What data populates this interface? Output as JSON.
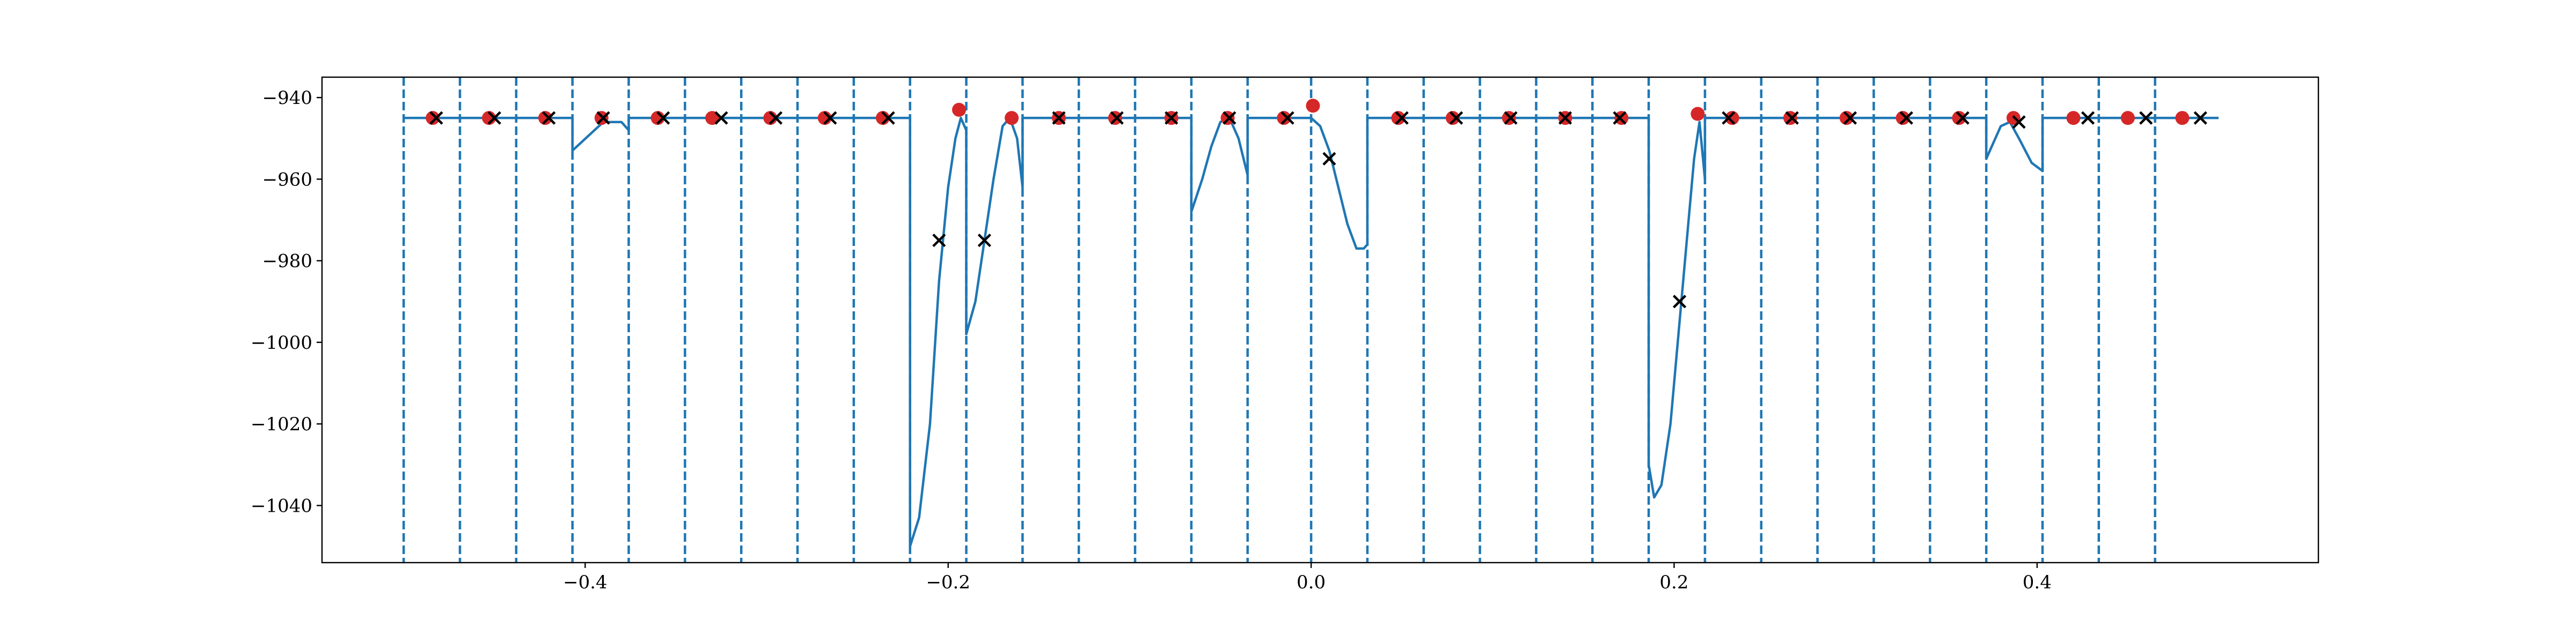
{
  "chart_data": {
    "type": "line",
    "title": "",
    "xlabel": "",
    "ylabel": "",
    "xlim": [
      -0.545,
      0.555
    ],
    "ylim": [
      -1054,
      -935
    ],
    "grid": false,
    "legend": "none",
    "x_ticks": [
      {
        "value": -0.4,
        "label": "−0.4"
      },
      {
        "value": -0.2,
        "label": "−0.2"
      },
      {
        "value": 0.0,
        "label": "0.0"
      },
      {
        "value": 0.2,
        "label": "0.2"
      },
      {
        "value": 0.4,
        "label": "0.4"
      }
    ],
    "y_ticks": [
      {
        "value": -940,
        "label": "−940"
      },
      {
        "value": -960,
        "label": "−960"
      },
      {
        "value": -980,
        "label": "−980"
      },
      {
        "value": -1000,
        "label": "−1000"
      },
      {
        "value": -1020,
        "label": "−1020"
      },
      {
        "value": -1040,
        "label": "−1040"
      }
    ],
    "colors": {
      "line": "#1f77b4",
      "boundary": "#1f77b4",
      "red_marker": "#d62728",
      "x_marker": "#000000",
      "axis": "#000000"
    },
    "boundaries": [
      -0.5,
      -0.469,
      -0.438,
      -0.407,
      -0.376,
      -0.345,
      -0.314,
      -0.283,
      -0.252,
      -0.221,
      -0.19,
      -0.159,
      -0.128,
      -0.097,
      -0.066,
      -0.035,
      0.0,
      0.031,
      0.062,
      0.093,
      0.124,
      0.155,
      0.186,
      0.217,
      0.248,
      0.279,
      0.31,
      0.341,
      0.372,
      0.403,
      0.434,
      0.465
    ],
    "series": [
      {
        "values": [
          [
            -0.5,
            -945
          ],
          [
            -0.407,
            -945
          ],
          [
            -0.407,
            -953
          ],
          [
            -0.39,
            -946
          ],
          [
            -0.38,
            -946
          ],
          [
            -0.376,
            -948
          ],
          [
            -0.376,
            -945
          ],
          [
            -0.221,
            -945
          ],
          [
            -0.221,
            -1050
          ],
          [
            -0.216,
            -1043
          ],
          [
            -0.21,
            -1020
          ],
          [
            -0.205,
            -985
          ],
          [
            -0.2,
            -962
          ],
          [
            -0.196,
            -950
          ],
          [
            -0.193,
            -945
          ],
          [
            -0.19,
            -948
          ],
          [
            -0.19,
            -998
          ],
          [
            -0.185,
            -990
          ],
          [
            -0.18,
            -975
          ],
          [
            -0.175,
            -960
          ],
          [
            -0.17,
            -947
          ],
          [
            -0.166,
            -945
          ],
          [
            -0.162,
            -950
          ],
          [
            -0.159,
            -962
          ],
          [
            -0.159,
            -945
          ],
          [
            -0.066,
            -945
          ],
          [
            -0.066,
            -968
          ],
          [
            -0.06,
            -960
          ],
          [
            -0.055,
            -952
          ],
          [
            -0.05,
            -946
          ],
          [
            -0.045,
            -945
          ],
          [
            -0.04,
            -950
          ],
          [
            -0.035,
            -959
          ],
          [
            -0.035,
            -945
          ],
          [
            0.0,
            -945
          ],
          [
            0.005,
            -947
          ],
          [
            0.01,
            -953
          ],
          [
            0.015,
            -962
          ],
          [
            0.02,
            -971
          ],
          [
            0.025,
            -977
          ],
          [
            0.029,
            -977
          ],
          [
            0.031,
            -976
          ],
          [
            0.031,
            -975
          ],
          [
            0.031,
            -945
          ],
          [
            0.186,
            -945
          ],
          [
            0.186,
            -1030
          ],
          [
            0.189,
            -1038
          ],
          [
            0.193,
            -1035
          ],
          [
            0.198,
            -1020
          ],
          [
            0.203,
            -995
          ],
          [
            0.207,
            -975
          ],
          [
            0.211,
            -955
          ],
          [
            0.214,
            -946
          ],
          [
            0.217,
            -960
          ],
          [
            0.217,
            -945
          ],
          [
            0.372,
            -945
          ],
          [
            0.372,
            -955
          ],
          [
            0.38,
            -947
          ],
          [
            0.385,
            -946
          ],
          [
            0.39,
            -950
          ],
          [
            0.397,
            -956
          ],
          [
            0.403,
            -958
          ],
          [
            0.403,
            -945
          ],
          [
            0.5,
            -945
          ]
        ]
      }
    ],
    "red_points": [
      [
        -0.484,
        -945
      ],
      [
        -0.453,
        -945
      ],
      [
        -0.422,
        -945
      ],
      [
        -0.391,
        -945
      ],
      [
        -0.36,
        -945
      ],
      [
        -0.33,
        -945
      ],
      [
        -0.298,
        -945
      ],
      [
        -0.268,
        -945
      ],
      [
        -0.236,
        -945
      ],
      [
        -0.194,
        -943
      ],
      [
        -0.165,
        -945
      ],
      [
        -0.139,
        -945
      ],
      [
        -0.108,
        -945
      ],
      [
        -0.077,
        -945
      ],
      [
        -0.046,
        -945
      ],
      [
        -0.015,
        -945
      ],
      [
        0.001,
        -942
      ],
      [
        0.048,
        -945
      ],
      [
        0.078,
        -945
      ],
      [
        0.109,
        -945
      ],
      [
        0.14,
        -945
      ],
      [
        0.171,
        -945
      ],
      [
        0.213,
        -944
      ],
      [
        0.232,
        -945
      ],
      [
        0.264,
        -945
      ],
      [
        0.295,
        -945
      ],
      [
        0.326,
        -945
      ],
      [
        0.357,
        -945
      ],
      [
        0.387,
        -945
      ],
      [
        0.42,
        -945
      ],
      [
        0.45,
        -945
      ],
      [
        0.48,
        -945
      ]
    ],
    "x_points": [
      [
        -0.482,
        -945
      ],
      [
        -0.45,
        -945
      ],
      [
        -0.42,
        -945
      ],
      [
        -0.39,
        -945
      ],
      [
        -0.357,
        -945
      ],
      [
        -0.325,
        -945
      ],
      [
        -0.295,
        -945
      ],
      [
        -0.265,
        -945
      ],
      [
        -0.233,
        -945
      ],
      [
        -0.205,
        -975
      ],
      [
        -0.18,
        -975
      ],
      [
        -0.139,
        -945
      ],
      [
        -0.107,
        -945
      ],
      [
        -0.077,
        -945
      ],
      [
        -0.045,
        -945
      ],
      [
        -0.013,
        -945
      ],
      [
        0.01,
        -955
      ],
      [
        0.05,
        -945
      ],
      [
        0.08,
        -945
      ],
      [
        0.11,
        -945
      ],
      [
        0.14,
        -945
      ],
      [
        0.17,
        -945
      ],
      [
        0.203,
        -990
      ],
      [
        0.23,
        -945
      ],
      [
        0.265,
        -945
      ],
      [
        0.297,
        -945
      ],
      [
        0.328,
        -945
      ],
      [
        0.359,
        -945
      ],
      [
        0.39,
        -946
      ],
      [
        0.428,
        -945
      ],
      [
        0.46,
        -945
      ],
      [
        0.49,
        -945
      ]
    ]
  }
}
